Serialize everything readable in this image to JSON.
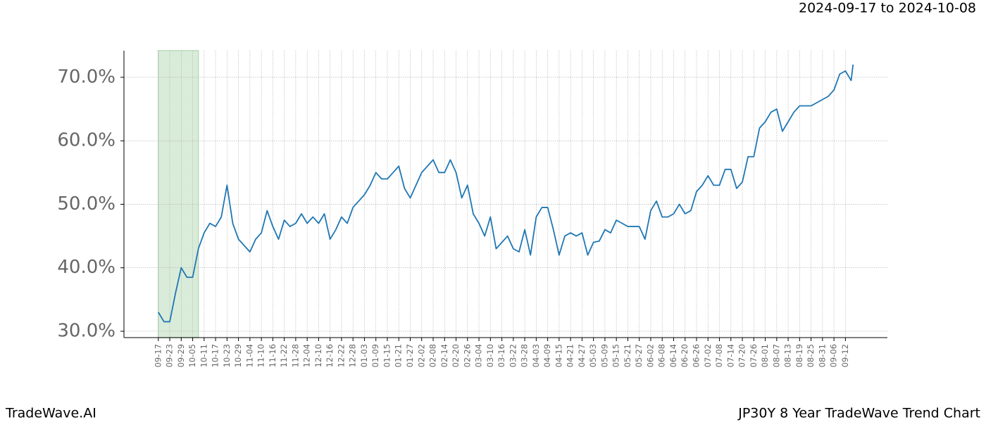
{
  "chart_data": {
    "type": "line",
    "title": "JP30Y 8 Year TradeWave Trend Chart",
    "subtitle": "2024-09-17 to 2024-10-08",
    "brand": "TradeWave.AI",
    "color": "#1f77b4",
    "highlight_range": [
      0,
      21
    ],
    "highlight_color": "#d9ecd9",
    "grid": true,
    "x": [
      0,
      3,
      6,
      9,
      12,
      15,
      18,
      21,
      24,
      27,
      30,
      33,
      36,
      39,
      42,
      45,
      48,
      51,
      54,
      57,
      60,
      63,
      66,
      69,
      72,
      75,
      78,
      81,
      84,
      87,
      90,
      93,
      96,
      99,
      102,
      105,
      108,
      111,
      114,
      117,
      120,
      123,
      126,
      129,
      132,
      135,
      138,
      141,
      144,
      147,
      150,
      153,
      156,
      159,
      162,
      165,
      168,
      171,
      174,
      177,
      180,
      183,
      186,
      189,
      192,
      195,
      198,
      201,
      204,
      207,
      210,
      213,
      216,
      219,
      222,
      225,
      228,
      231,
      234,
      237,
      240,
      243,
      246,
      249,
      252,
      255,
      258,
      261,
      264,
      267,
      270,
      273,
      276,
      279,
      282,
      285,
      288,
      291,
      294,
      297,
      300,
      303,
      306,
      309,
      312,
      315,
      318,
      321,
      324,
      327,
      330,
      333,
      336,
      339,
      342,
      345,
      348,
      351,
      354,
      357,
      360,
      363,
      364
    ],
    "values": [
      33,
      31.5,
      31.5,
      36,
      40,
      38.5,
      38.5,
      43,
      45.5,
      47,
      46.5,
      48,
      53,
      47,
      44.5,
      43.5,
      42.5,
      44.5,
      45.5,
      49,
      46.5,
      44.5,
      47.5,
      46.5,
      47,
      48.5,
      47,
      48,
      47,
      48.5,
      44.5,
      46,
      48,
      47,
      49.5,
      50.5,
      51.5,
      53,
      55,
      54,
      54,
      55,
      56,
      52.5,
      51,
      53,
      55,
      56,
      57,
      55,
      55,
      57,
      55,
      51,
      53,
      48.5,
      47,
      45,
      48,
      43,
      44,
      45,
      43,
      42.5,
      46,
      42,
      48,
      49.5,
      49.5,
      46,
      42,
      45,
      45.5,
      45,
      45.5,
      42,
      44,
      44.2,
      46,
      45.5,
      47.5,
      47,
      46.5,
      46.5,
      46.5,
      44.5,
      49,
      50.5,
      48,
      48,
      48.5,
      50,
      48.5,
      49,
      52,
      53,
      54.5,
      53,
      53,
      55.5,
      55.5,
      52.5,
      53.5,
      57.5,
      57.5,
      62,
      63,
      64.5,
      65,
      61.5,
      63,
      64.5,
      65.5,
      65.5,
      65.5,
      66,
      66.5,
      67,
      68,
      70.5,
      71,
      69.5,
      72
    ],
    "xlim": [
      -18,
      382
    ],
    "xticks": [
      {
        "value": 0,
        "label": "09-17"
      },
      {
        "value": 6,
        "label": "09-23"
      },
      {
        "value": 12,
        "label": "09-29"
      },
      {
        "value": 18,
        "label": "10-05"
      },
      {
        "value": 24,
        "label": "10-11"
      },
      {
        "value": 30,
        "label": "10-17"
      },
      {
        "value": 36,
        "label": "10-23"
      },
      {
        "value": 42,
        "label": "10-29"
      },
      {
        "value": 48,
        "label": "11-04"
      },
      {
        "value": 54,
        "label": "11-10"
      },
      {
        "value": 60,
        "label": "11-16"
      },
      {
        "value": 66,
        "label": "11-22"
      },
      {
        "value": 72,
        "label": "11-28"
      },
      {
        "value": 78,
        "label": "12-04"
      },
      {
        "value": 84,
        "label": "12-10"
      },
      {
        "value": 90,
        "label": "12-16"
      },
      {
        "value": 96,
        "label": "12-22"
      },
      {
        "value": 102,
        "label": "12-28"
      },
      {
        "value": 108,
        "label": "01-03"
      },
      {
        "value": 114,
        "label": "01-09"
      },
      {
        "value": 120,
        "label": "01-15"
      },
      {
        "value": 126,
        "label": "01-21"
      },
      {
        "value": 132,
        "label": "01-27"
      },
      {
        "value": 138,
        "label": "02-02"
      },
      {
        "value": 144,
        "label": "02-08"
      },
      {
        "value": 150,
        "label": "02-14"
      },
      {
        "value": 156,
        "label": "02-20"
      },
      {
        "value": 162,
        "label": "02-26"
      },
      {
        "value": 168,
        "label": "03-04"
      },
      {
        "value": 174,
        "label": "03-10"
      },
      {
        "value": 180,
        "label": "03-16"
      },
      {
        "value": 186,
        "label": "03-22"
      },
      {
        "value": 192,
        "label": "03-28"
      },
      {
        "value": 198,
        "label": "04-03"
      },
      {
        "value": 204,
        "label": "04-09"
      },
      {
        "value": 210,
        "label": "04-15"
      },
      {
        "value": 216,
        "label": "04-21"
      },
      {
        "value": 222,
        "label": "04-27"
      },
      {
        "value": 228,
        "label": "05-03"
      },
      {
        "value": 234,
        "label": "05-09"
      },
      {
        "value": 240,
        "label": "05-15"
      },
      {
        "value": 246,
        "label": "05-21"
      },
      {
        "value": 252,
        "label": "05-27"
      },
      {
        "value": 258,
        "label": "06-02"
      },
      {
        "value": 264,
        "label": "06-08"
      },
      {
        "value": 270,
        "label": "06-14"
      },
      {
        "value": 276,
        "label": "06-20"
      },
      {
        "value": 282,
        "label": "06-26"
      },
      {
        "value": 288,
        "label": "07-02"
      },
      {
        "value": 294,
        "label": "07-08"
      },
      {
        "value": 300,
        "label": "07-14"
      },
      {
        "value": 306,
        "label": "07-20"
      },
      {
        "value": 312,
        "label": "07-26"
      },
      {
        "value": 318,
        "label": "08-01"
      },
      {
        "value": 324,
        "label": "08-07"
      },
      {
        "value": 330,
        "label": "08-13"
      },
      {
        "value": 336,
        "label": "08-19"
      },
      {
        "value": 342,
        "label": "08-25"
      },
      {
        "value": 348,
        "label": "08-31"
      },
      {
        "value": 354,
        "label": "09-06"
      },
      {
        "value": 360,
        "label": "09-12"
      }
    ],
    "ylim": [
      29,
      74.2
    ],
    "yticks": [
      {
        "value": 30,
        "label": "30.0%"
      },
      {
        "value": 40,
        "label": "40.0%"
      },
      {
        "value": 50,
        "label": "50.0%"
      },
      {
        "value": 60,
        "label": "60.0%"
      },
      {
        "value": 70,
        "label": "70.0%"
      }
    ]
  }
}
